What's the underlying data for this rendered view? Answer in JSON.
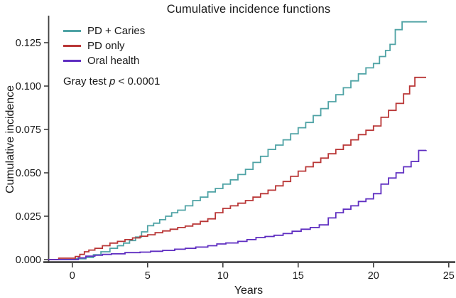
{
  "chart_data": {
    "type": "line",
    "subtype": "step",
    "title": "Cumulative incidence functions",
    "xlabel": "Years",
    "ylabel": "Cumulative incidence",
    "x_ticks": [
      0,
      5,
      10,
      15,
      20,
      25
    ],
    "y_ticks": [
      "0.000",
      "0.025",
      "0.050",
      "0.075",
      "0.100",
      "0.125"
    ],
    "y_tick_values": [
      0,
      0.025,
      0.05,
      0.075,
      0.1,
      0.125
    ],
    "xlim": [
      -1.6,
      25.5
    ],
    "ylim": [
      0,
      0.1406
    ],
    "grid": false,
    "legend_position": "top-left-inside",
    "axis_color": "#3f3f3f",
    "text_color": "#1a1a1a",
    "annotation": {
      "prefix": "Gray test ",
      "stat": "p",
      "suffix": " < 0.0001"
    },
    "series": [
      {
        "name": "PD + Caries",
        "color": "#4fa3a5",
        "points": [
          [
            -1.6,
            0
          ],
          [
            0.2,
            0.0005
          ],
          [
            0.9,
            0.0012
          ],
          [
            1.4,
            0.0028
          ],
          [
            1.9,
            0.0045
          ],
          [
            2.5,
            0.0065
          ],
          [
            3.0,
            0.008
          ],
          [
            3.4,
            0.0095
          ],
          [
            3.8,
            0.011
          ],
          [
            4.2,
            0.013
          ],
          [
            4.6,
            0.016
          ],
          [
            5.0,
            0.0195
          ],
          [
            5.4,
            0.021
          ],
          [
            5.8,
            0.023
          ],
          [
            6.2,
            0.025
          ],
          [
            6.6,
            0.027
          ],
          [
            7.0,
            0.0285
          ],
          [
            7.5,
            0.031
          ],
          [
            8.0,
            0.034
          ],
          [
            8.5,
            0.036
          ],
          [
            9.0,
            0.039
          ],
          [
            9.5,
            0.041
          ],
          [
            10.0,
            0.0435
          ],
          [
            10.5,
            0.046
          ],
          [
            11.0,
            0.049
          ],
          [
            11.5,
            0.052
          ],
          [
            12.0,
            0.056
          ],
          [
            12.5,
            0.0595
          ],
          [
            13.0,
            0.0635
          ],
          [
            13.5,
            0.066
          ],
          [
            14.0,
            0.069
          ],
          [
            14.5,
            0.0725
          ],
          [
            15.0,
            0.076
          ],
          [
            15.5,
            0.079
          ],
          [
            16.0,
            0.083
          ],
          [
            16.5,
            0.087
          ],
          [
            17.0,
            0.091
          ],
          [
            17.5,
            0.095
          ],
          [
            18.0,
            0.099
          ],
          [
            18.5,
            0.103
          ],
          [
            19.0,
            0.107
          ],
          [
            19.5,
            0.1105
          ],
          [
            20.0,
            0.113
          ],
          [
            20.4,
            0.117
          ],
          [
            20.8,
            0.1205
          ],
          [
            21.1,
            0.124
          ],
          [
            21.45,
            0.1325
          ],
          [
            21.9,
            0.137
          ],
          [
            23.5,
            0.1375
          ]
        ]
      },
      {
        "name": "PD only",
        "color": "#b93636",
        "points": [
          [
            -1.6,
            0
          ],
          [
            -0.9,
            0.0008
          ],
          [
            0.2,
            0.0018
          ],
          [
            0.5,
            0.003
          ],
          [
            0.8,
            0.0045
          ],
          [
            1.1,
            0.0055
          ],
          [
            1.5,
            0.0065
          ],
          [
            2.0,
            0.008
          ],
          [
            2.5,
            0.0095
          ],
          [
            3.0,
            0.0105
          ],
          [
            3.5,
            0.0115
          ],
          [
            4.0,
            0.0125
          ],
          [
            4.5,
            0.0135
          ],
          [
            5.0,
            0.0143
          ],
          [
            5.5,
            0.0155
          ],
          [
            6.0,
            0.0165
          ],
          [
            6.5,
            0.0175
          ],
          [
            7.0,
            0.0185
          ],
          [
            7.5,
            0.0193
          ],
          [
            8.0,
            0.0205
          ],
          [
            8.5,
            0.022
          ],
          [
            9.0,
            0.0235
          ],
          [
            9.5,
            0.027
          ],
          [
            10.0,
            0.0295
          ],
          [
            10.5,
            0.031
          ],
          [
            11.0,
            0.0325
          ],
          [
            11.5,
            0.034
          ],
          [
            12.0,
            0.036
          ],
          [
            12.5,
            0.038
          ],
          [
            13.0,
            0.04
          ],
          [
            13.5,
            0.0425
          ],
          [
            14.0,
            0.045
          ],
          [
            14.5,
            0.048
          ],
          [
            15.0,
            0.051
          ],
          [
            15.5,
            0.0535
          ],
          [
            16.0,
            0.056
          ],
          [
            16.5,
            0.0585
          ],
          [
            17.0,
            0.061
          ],
          [
            17.5,
            0.0635
          ],
          [
            18.0,
            0.066
          ],
          [
            18.5,
            0.069
          ],
          [
            19.0,
            0.072
          ],
          [
            19.5,
            0.0745
          ],
          [
            20.0,
            0.077
          ],
          [
            20.5,
            0.082
          ],
          [
            21.0,
            0.086
          ],
          [
            21.5,
            0.09
          ],
          [
            22.0,
            0.0955
          ],
          [
            22.4,
            0.1
          ],
          [
            22.75,
            0.105
          ],
          [
            23.5,
            0.105
          ]
        ]
      },
      {
        "name": "Oral health",
        "color": "#5f2ec1",
        "points": [
          [
            -1.6,
            0
          ],
          [
            0.4,
            0.001
          ],
          [
            0.9,
            0.002
          ],
          [
            1.5,
            0.0025
          ],
          [
            2.0,
            0.003
          ],
          [
            2.6,
            0.0033
          ],
          [
            3.5,
            0.004
          ],
          [
            4.5,
            0.0043
          ],
          [
            5.2,
            0.0048
          ],
          [
            6.0,
            0.0053
          ],
          [
            6.8,
            0.006
          ],
          [
            7.5,
            0.0065
          ],
          [
            8.2,
            0.0072
          ],
          [
            9.0,
            0.008
          ],
          [
            9.6,
            0.009
          ],
          [
            10.2,
            0.0096
          ],
          [
            11.0,
            0.0105
          ],
          [
            11.6,
            0.0115
          ],
          [
            12.2,
            0.0127
          ],
          [
            12.8,
            0.0133
          ],
          [
            13.4,
            0.014
          ],
          [
            14.0,
            0.015
          ],
          [
            14.6,
            0.0163
          ],
          [
            15.2,
            0.0175
          ],
          [
            15.8,
            0.0185
          ],
          [
            16.4,
            0.02
          ],
          [
            17.0,
            0.024
          ],
          [
            17.5,
            0.027
          ],
          [
            18.0,
            0.029
          ],
          [
            18.5,
            0.031
          ],
          [
            19.0,
            0.0335
          ],
          [
            19.5,
            0.035
          ],
          [
            20.0,
            0.038
          ],
          [
            20.5,
            0.0435
          ],
          [
            21.0,
            0.047
          ],
          [
            21.5,
            0.05
          ],
          [
            22.0,
            0.0535
          ],
          [
            22.5,
            0.0565
          ],
          [
            23.0,
            0.0629
          ],
          [
            23.5,
            0.063
          ]
        ]
      }
    ]
  }
}
